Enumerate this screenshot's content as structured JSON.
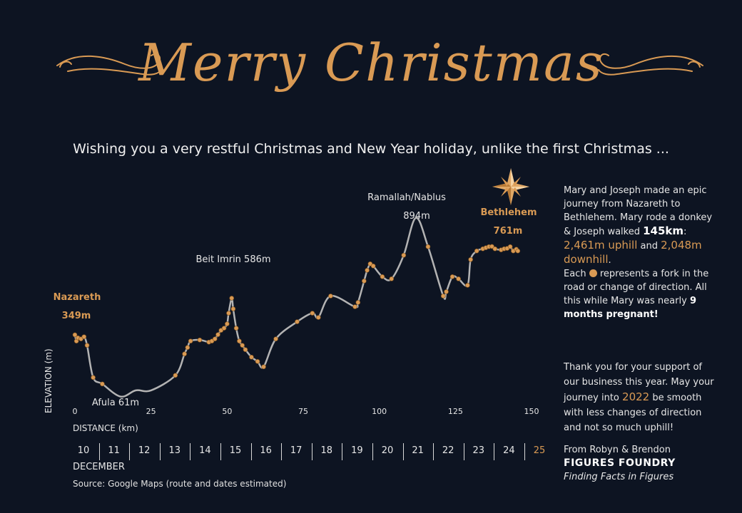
{
  "title": "Merry Christmas",
  "subtitle": "Wishing you a very restful Christmas and New Year holiday, unlike the first Christmas ...",
  "chart_data": {
    "type": "line",
    "xlabel": "DISTANCE (km)",
    "ylabel": "ELEVATION (m)",
    "xlim": [
      0,
      150
    ],
    "ylim": [
      0,
      950
    ],
    "xticks": [
      "0",
      "25",
      "50",
      "75",
      "100",
      "125",
      "150"
    ],
    "series": [
      {
        "values_x": [
          0,
          0.5,
          1,
          2,
          3,
          4,
          6,
          9,
          15,
          20,
          25,
          33,
          36,
          37,
          38,
          41,
          44,
          45,
          46,
          47,
          48,
          49,
          50,
          50.5,
          51.5,
          52,
          53,
          54,
          55,
          56,
          58,
          60,
          62,
          66,
          73,
          78,
          80,
          84,
          92,
          93,
          95,
          96,
          97,
          98,
          101,
          104,
          108,
          112,
          116,
          121,
          122,
          124,
          126,
          129,
          130,
          132,
          134,
          135,
          136,
          137,
          138,
          140,
          141,
          142,
          143,
          144,
          145,
          145.5
        ],
        "values_y": [
          349,
          320,
          335,
          330,
          340,
          300,
          150,
          120,
          61,
          90,
          90,
          160,
          260,
          290,
          320,
          325,
          315,
          320,
          330,
          350,
          370,
          380,
          400,
          450,
          520,
          470,
          380,
          320,
          300,
          280,
          245,
          225,
          200,
          330,
          410,
          450,
          430,
          530,
          480,
          500,
          600,
          650,
          680,
          670,
          620,
          610,
          720,
          894,
          760,
          530,
          550,
          620,
          610,
          580,
          700,
          740,
          750,
          755,
          760,
          761,
          750,
          745,
          750,
          752,
          760,
          740,
          748,
          740
        ]
      }
    ],
    "annotations": [
      {
        "label": "Nazareth",
        "value": "349m"
      },
      {
        "label": "Afula 61m"
      },
      {
        "label": "Beit Imrin 586m"
      },
      {
        "label": "Ramallah/Nablus",
        "value": "894m"
      },
      {
        "label": "Bethlehem",
        "value": "761m"
      }
    ],
    "dates": [
      "10",
      "11",
      "12",
      "13",
      "14",
      "15",
      "16",
      "17",
      "18",
      "19",
      "20",
      "21",
      "22",
      "23",
      "24",
      "25"
    ],
    "dates_label": "DECEMBER",
    "colors": {
      "line": "#b3b3b3",
      "marker": "#d99a54",
      "accent": "#d99a54"
    }
  },
  "story": {
    "line1": "Mary and Joseph made an epic journey from Nazareth to Bethlehem. Mary rode a donkey & Joseph walked",
    "km": "145km",
    "colon": ":",
    "uphill": "2,461m uphill",
    "and": "and",
    "downhill": "2,048m downhill",
    "period": ".",
    "each": "Each",
    "each_rest": "represents a fork in the road or change of direction. All this while Mary was nearly",
    "pregnant": "9 months pregnant!"
  },
  "thanks": {
    "text1": "Thank you for your support of our business this year. May your journey into",
    "year": "2022",
    "text2": "be smooth with less changes of direction and not so much uphill!"
  },
  "from": {
    "line": "From Robyn & Brendon",
    "brand": "FIGURES FOUNDRY",
    "tagline": "Finding Facts in Figures"
  },
  "source": "Source: Google Maps (route and dates estimated)"
}
